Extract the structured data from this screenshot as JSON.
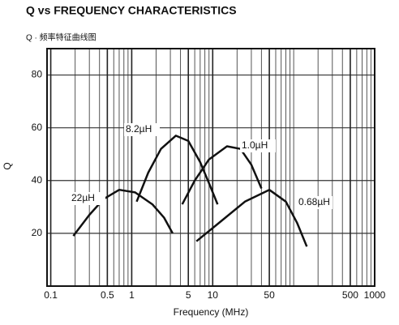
{
  "chart_data": {
    "type": "line",
    "title": "Q vs FREQUENCY CHARACTERISTICS",
    "subtitle": "Q · 频率特征曲线图",
    "x_label": "Frequency (MHz)",
    "y_label": "Q",
    "log_x": true,
    "grid": true,
    "xlim": [
      0.09,
      1000
    ],
    "ylim": [
      0,
      90
    ],
    "xticks": [
      0.1,
      0.5,
      1,
      5,
      10,
      50,
      500,
      1000
    ],
    "yticks": [
      20,
      40,
      60,
      80
    ],
    "series": [
      {
        "name": "22µH",
        "color": "#111111",
        "x": [
          0.19,
          0.3,
          0.45,
          0.7,
          1.1,
          1.8,
          2.5,
          3.2
        ],
        "values": [
          19,
          27,
          33,
          36.5,
          35.5,
          31,
          26,
          20
        ]
      },
      {
        "name": "8.2µH",
        "color": "#111111",
        "x": [
          1.15,
          1.6,
          2.3,
          3.5,
          5,
          7,
          9,
          11.5
        ],
        "values": [
          32,
          43,
          52,
          57,
          55,
          47,
          39,
          31
        ]
      },
      {
        "name": "1.0µH",
        "color": "#111111",
        "x": [
          4.2,
          6,
          9,
          15,
          22,
          30,
          40
        ],
        "values": [
          31,
          40,
          48,
          53,
          52,
          46,
          37
        ]
      },
      {
        "name": "0.68µH",
        "color": "#111111",
        "x": [
          6.3,
          12,
          25,
          50,
          80,
          110,
          145
        ],
        "values": [
          17,
          24,
          32,
          36.5,
          32,
          24,
          15
        ]
      }
    ]
  }
}
